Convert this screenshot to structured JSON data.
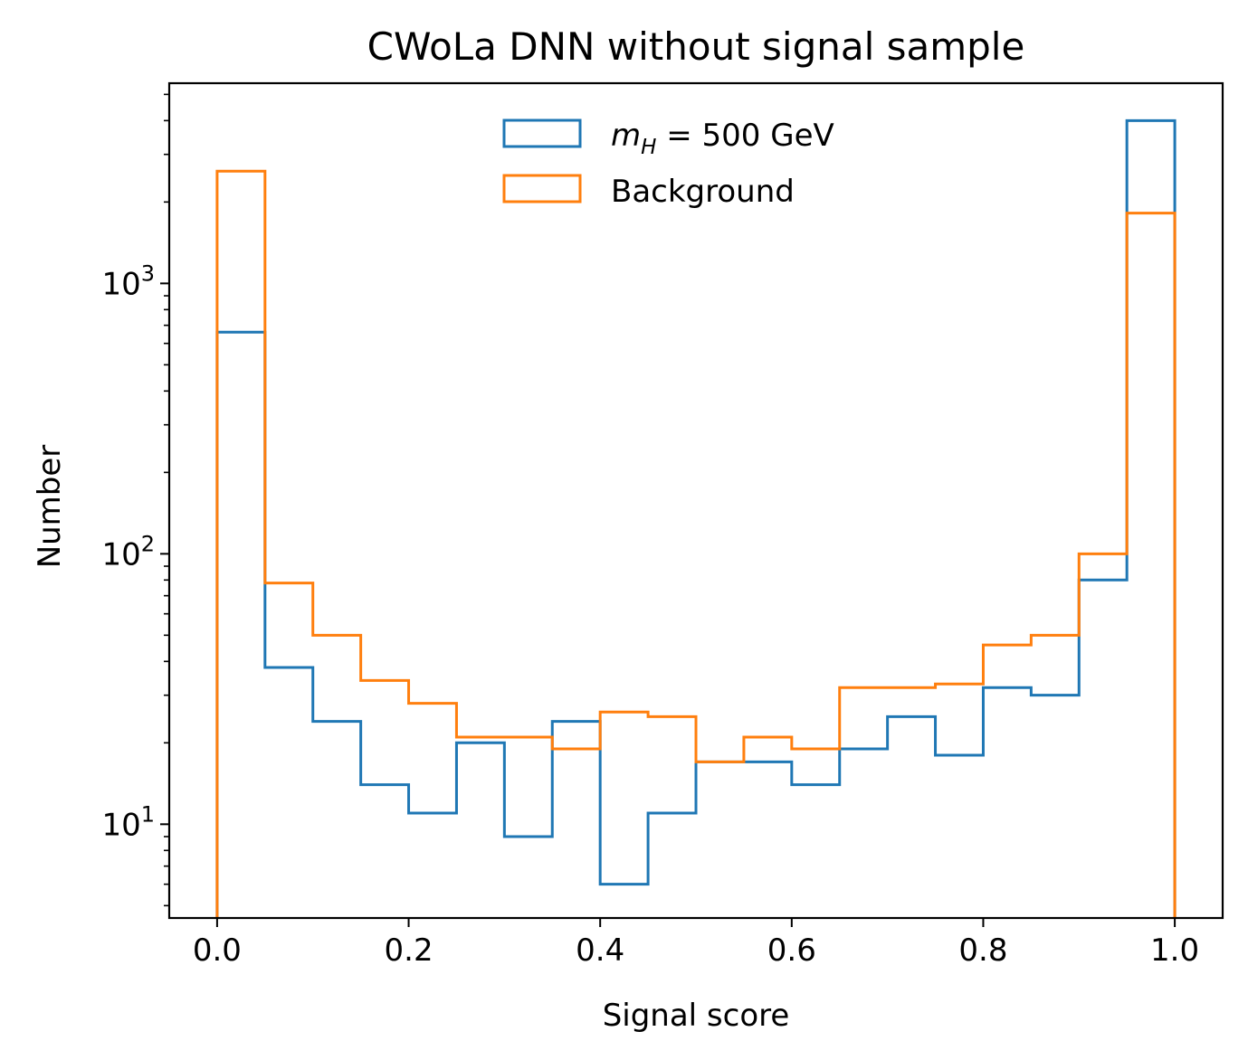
{
  "chart_data": {
    "type": "histogram-step",
    "title": "CWoLa DNN without signal sample",
    "xlabel": "Signal score",
    "ylabel": "Number",
    "yscale": "log",
    "xlim": [
      -0.05,
      1.05
    ],
    "ylim": [
      4.5,
      5500
    ],
    "grid": false,
    "legend_position": "upper center",
    "bin_edges": [
      0.0,
      0.05,
      0.1,
      0.15,
      0.2,
      0.25,
      0.3,
      0.35,
      0.4,
      0.45,
      0.5,
      0.55,
      0.6,
      0.65,
      0.7,
      0.75,
      0.8,
      0.85,
      0.9,
      0.95,
      1.0
    ],
    "x_ticks": [
      "0.0",
      "0.2",
      "0.4",
      "0.6",
      "0.8",
      "1.0"
    ],
    "x_tick_values": [
      0.0,
      0.2,
      0.4,
      0.6,
      0.8,
      1.0
    ],
    "y_ticks": [
      {
        "value": 10,
        "base": "10",
        "exp": "1"
      },
      {
        "value": 100,
        "base": "10",
        "exp": "2"
      },
      {
        "value": 1000,
        "base": "10",
        "exp": "3"
      }
    ],
    "series": [
      {
        "name_main": "m",
        "name_sub": "H",
        "name_rest": " = 500 GeV",
        "color": "#1f77b4",
        "values": [
          660,
          38,
          24,
          14,
          11,
          20,
          9,
          24,
          6,
          11,
          17,
          17,
          14,
          19,
          25,
          18,
          32,
          30,
          80,
          4000
        ]
      },
      {
        "name": "Background",
        "color": "#ff7f0e",
        "values": [
          2600,
          78,
          50,
          34,
          28,
          21,
          21,
          19,
          26,
          25,
          17,
          21,
          19,
          32,
          32,
          33,
          46,
          50,
          100,
          1820
        ]
      }
    ]
  }
}
